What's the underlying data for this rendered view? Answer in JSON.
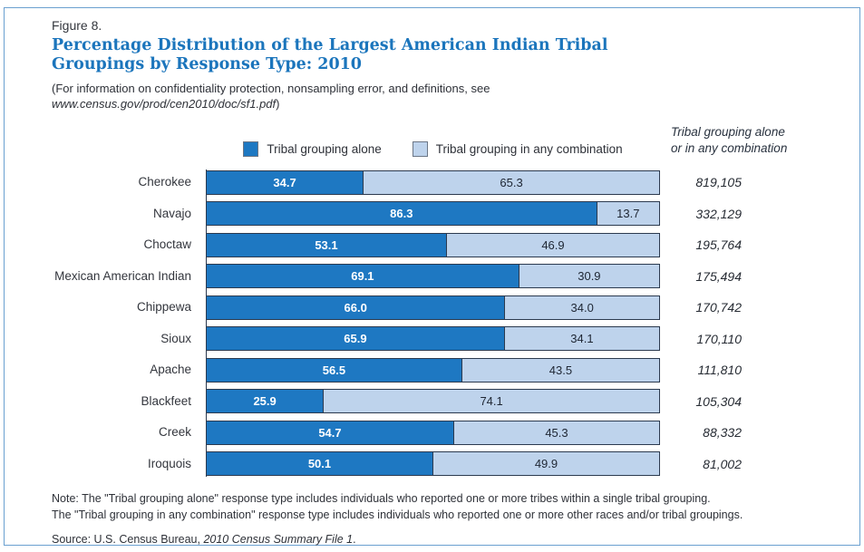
{
  "figure_label": "Figure 8.",
  "title": "Percentage Distribution of the Largest American Indian Tribal Groupings by Response Type: 2010",
  "subtitle_line1": "(For information on confidentiality protection, nonsampling error, and definitions, see",
  "subtitle_url": "www.census.gov/prod/cen2010/doc/sf1.pdf",
  "subtitle_suffix": ")",
  "legend": [
    {
      "label": "Tribal grouping alone",
      "color": "#1e78c2"
    },
    {
      "label": "Tribal grouping in any combination",
      "color": "#bed3ec"
    }
  ],
  "column_header_line1": "Tribal grouping alone",
  "column_header_line2": "or in any combination",
  "colors": {
    "title_blue": "#1b75bc",
    "bar_alone": "#1e78c2",
    "bar_combination": "#bed3ec",
    "bar_border": "#2c3a4f",
    "frame_border": "#6aa0d0"
  },
  "chart_data": {
    "type": "bar",
    "orientation": "horizontal",
    "stacked": true,
    "xlim": [
      0,
      100
    ],
    "grid": false,
    "legend_position": "top",
    "title": "Percentage Distribution of the Largest American Indian Tribal Groupings by Response Type: 2010",
    "categories": [
      "Cherokee",
      "Navajo",
      "Choctaw",
      "Mexican American Indian",
      "Chippewa",
      "Sioux",
      "Apache",
      "Blackfeet",
      "Creek",
      "Iroquois"
    ],
    "series": [
      {
        "name": "Tribal grouping alone",
        "color": "#1e78c2",
        "values": [
          34.7,
          86.3,
          53.1,
          69.1,
          66.0,
          65.9,
          56.5,
          25.9,
          54.7,
          50.1
        ],
        "labels": [
          "34.7",
          "86.3",
          "53.1",
          "69.1",
          "66.0",
          "65.9",
          "56.5",
          "25.9",
          "54.7",
          "50.1"
        ]
      },
      {
        "name": "Tribal grouping in any combination",
        "color": "#bed3ec",
        "values": [
          65.3,
          13.7,
          46.9,
          30.9,
          34.0,
          34.1,
          43.5,
          74.1,
          45.3,
          49.9
        ],
        "labels": [
          "65.3",
          "13.7",
          "46.9",
          "30.9",
          "34.0",
          "34.1",
          "43.5",
          "74.1",
          "45.3",
          "49.9"
        ]
      }
    ],
    "totals_label": "Tribal grouping alone or in any combination",
    "totals": [
      "819,105",
      "332,129",
      "195,764",
      "175,494",
      "170,742",
      "170,110",
      "111,810",
      "105,304",
      "88,332",
      "81,002"
    ]
  },
  "note_line1": "Note: The \"Tribal grouping alone\" response type includes individuals who reported one or more tribes within a single tribal grouping.",
  "note_line2": "The \"Tribal grouping in any combination\" response type includes individuals who reported one or more other races and/or tribal groupings.",
  "source_prefix": "Source: U.S. Census Bureau, ",
  "source_italic": "2010 Census Summary File 1",
  "source_suffix": "."
}
